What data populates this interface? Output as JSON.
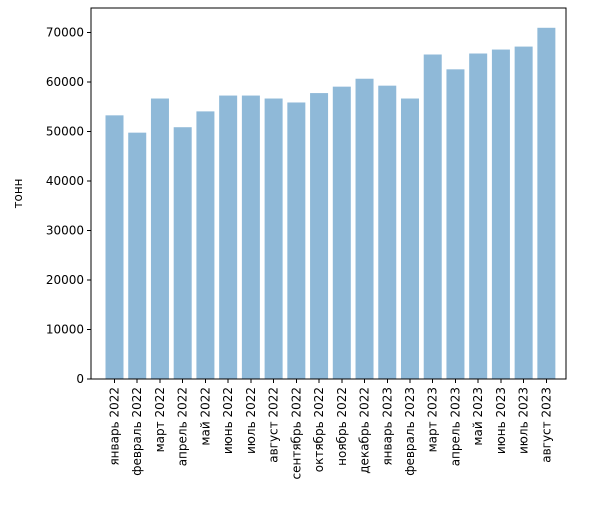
{
  "chart_data": {
    "type": "bar",
    "title": "",
    "xlabel": "",
    "ylabel": "тонн",
    "ylim": [
      0,
      75000
    ],
    "yticks": [
      "0",
      "10000",
      "20000",
      "30000",
      "40000",
      "50000",
      "60000",
      "70000"
    ],
    "grid": false,
    "bar_color": "#8fb9d8",
    "categories": [
      "январь 2022",
      "февраль 2022",
      "март 2022",
      "апрель 2022",
      "май 2022",
      "июнь 2022",
      "июль 2022",
      "август 2022",
      "сентябрь 2022",
      "октябрь 2022",
      "ноябрь 2022",
      "декабрь 2022",
      "январь 2023",
      "февраль 2023",
      "март 2023",
      "апрель 2023",
      "май 2023",
      "июнь 2023",
      "июль 2023",
      "август 2023"
    ],
    "values": [
      53300,
      49800,
      56700,
      50900,
      54100,
      57300,
      57300,
      56700,
      55900,
      57800,
      59100,
      60700,
      59300,
      56700,
      65600,
      62600,
      65800,
      66600,
      67200,
      71000
    ]
  }
}
